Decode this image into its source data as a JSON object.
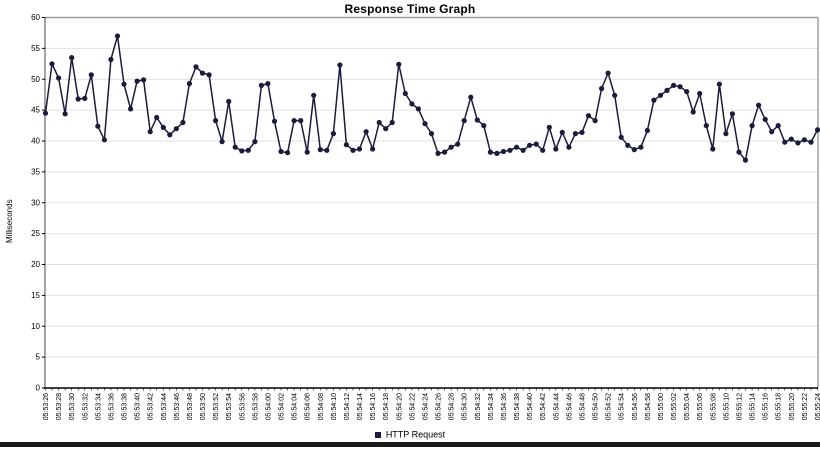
{
  "title": "Response Time Graph",
  "colors": {
    "series": "#1b1b3d",
    "grid": "#e0e0e0",
    "border": "#999999",
    "axis": "#000000",
    "background": "#ffffff",
    "footer_bar": "#1b1b1b"
  },
  "legend": {
    "items": [
      {
        "label": "HTTP Request",
        "color": "#1b1b3d"
      }
    ]
  },
  "chart_data": {
    "type": "line",
    "title": "Response Time Graph",
    "xlabel": "",
    "ylabel": "Milliseconds",
    "ylim": [
      0,
      60
    ],
    "y_ticks": [
      0,
      5,
      10,
      15,
      20,
      25,
      30,
      35,
      40,
      45,
      50,
      55,
      60
    ],
    "grid": true,
    "marker": "circle",
    "legend_position": "bottom",
    "label_every": 2,
    "x_tick_labels": [
      "05:53:26",
      "05:53:28",
      "05:53:30",
      "05:53:32",
      "05:53:34",
      "05:53:36",
      "05:53:38",
      "05:53:40",
      "05:53:42",
      "05:53:44",
      "05:53:46",
      "05:53:48",
      "05:53:50",
      "05:53:52",
      "05:53:54",
      "05:53:56",
      "05:53:58",
      "05:54:00",
      "05:54:02",
      "05:54:04",
      "05:54:06",
      "05:54:08",
      "05:54:10",
      "05:54:12",
      "05:54:14",
      "05:54:16",
      "05:54:18",
      "05:54:20",
      "05:54:22",
      "05:54:24",
      "05:54:26",
      "05:54:28",
      "05:54:30",
      "05:54:32",
      "05:54:34",
      "05:54:36",
      "05:54:38",
      "05:54:40",
      "05:54:42",
      "05:54:44",
      "05:54:46",
      "05:54:48",
      "05:54:50",
      "05:54:52",
      "05:54:54",
      "05:54:56",
      "05:54:58",
      "05:55:00",
      "05:55:02",
      "05:55:04",
      "05:55:06",
      "05:55:08",
      "05:55:10",
      "05:55:12",
      "05:55:14",
      "05:55:16",
      "05:55:18",
      "05:55:20",
      "05:55:22",
      "05:55:24"
    ],
    "series": [
      {
        "name": "HTTP Request",
        "color": "#1b1b3d",
        "values": [
          44.5,
          52.5,
          50.2,
          44.4,
          53.5,
          46.8,
          46.9,
          50.7,
          42.4,
          40.2,
          53.2,
          57.0,
          49.2,
          45.2,
          49.7,
          49.9,
          41.5,
          43.8,
          42.2,
          41.0,
          42.0,
          43.0,
          49.3,
          52.0,
          51.0,
          50.7,
          43.3,
          39.9,
          46.4,
          39.0,
          38.4,
          38.5,
          39.9,
          49.0,
          49.3,
          43.2,
          38.3,
          38.1,
          43.3,
          43.3,
          38.2,
          47.4,
          38.6,
          38.5,
          41.2,
          52.3,
          39.4,
          38.5,
          38.7,
          41.5,
          38.7,
          43.0,
          42.0,
          43.0,
          52.4,
          47.7,
          46.0,
          45.2,
          42.8,
          41.2,
          38.0,
          38.2,
          39.0,
          39.5,
          43.3,
          47.1,
          43.4,
          42.5,
          38.2,
          38.0,
          38.3,
          38.5,
          39.0,
          38.5,
          39.3,
          39.5,
          38.5,
          42.2,
          38.7,
          41.4,
          39.0,
          41.2,
          41.4,
          44.1,
          43.3,
          48.5,
          51.0,
          47.4,
          40.6,
          39.3,
          38.6,
          39.0,
          41.7,
          46.6,
          47.4,
          48.2,
          49.0,
          48.8,
          48.0,
          44.7,
          47.7,
          42.5,
          38.7,
          49.2,
          41.2,
          44.4,
          38.2,
          36.9,
          42.5,
          45.8,
          43.5,
          41.5,
          42.5,
          39.8,
          40.3,
          39.7,
          40.2,
          39.8,
          41.8
        ]
      }
    ]
  }
}
